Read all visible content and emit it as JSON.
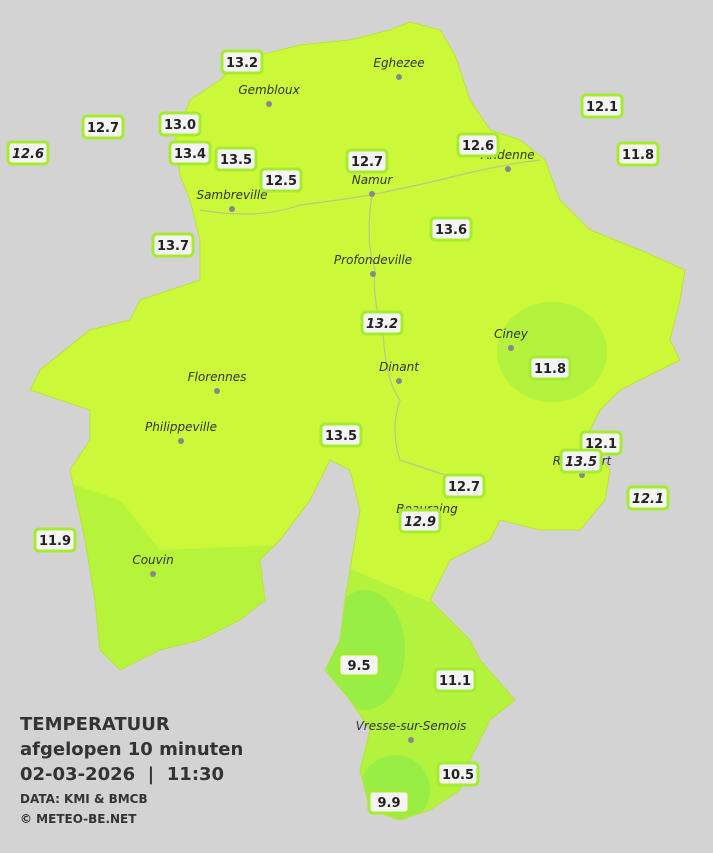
{
  "legend": {
    "title": "TEMPERATUUR",
    "subtitle": "afgelopen 10 minuten",
    "datetime": "02-03-2026  |  11:30",
    "source": "DATA: KMI & BMCB",
    "copyright": "© METEO-BE.NET"
  },
  "places": [
    "Eghezee",
    "Gembloux",
    "Andenne",
    "Namur",
    "Sambreville",
    "Profondeville",
    "Ciney",
    "Florennes",
    "Dinant",
    "Philippeville",
    "Rochefort",
    "Beauraing",
    "Couvin",
    "Vresse-sur-Semois"
  ],
  "stations": [
    {
      "value": "13.2",
      "italic": false
    },
    {
      "value": "12.7",
      "italic": false
    },
    {
      "value": "13.0",
      "italic": false
    },
    {
      "value": "12.6",
      "italic": true
    },
    {
      "value": "13.4",
      "italic": false
    },
    {
      "value": "13.5",
      "italic": false
    },
    {
      "value": "12.5",
      "italic": false
    },
    {
      "value": "12.7",
      "italic": false
    },
    {
      "value": "12.6",
      "italic": false
    },
    {
      "value": "12.1",
      "italic": false
    },
    {
      "value": "11.8",
      "italic": false
    },
    {
      "value": "13.7",
      "italic": false
    },
    {
      "value": "13.6",
      "italic": false
    },
    {
      "value": "13.2",
      "italic": true
    },
    {
      "value": "11.8",
      "italic": false
    },
    {
      "value": "13.5",
      "italic": false
    },
    {
      "value": "12.1",
      "italic": false
    },
    {
      "value": "13.5",
      "italic": true
    },
    {
      "value": "12.1",
      "italic": true
    },
    {
      "value": "12.7",
      "italic": false
    },
    {
      "value": "12.9",
      "italic": true
    },
    {
      "value": "11.9",
      "italic": false
    },
    {
      "value": "9.5",
      "italic": false
    },
    {
      "value": "11.1",
      "italic": false
    },
    {
      "value": "10.5",
      "italic": false
    },
    {
      "value": "9.9",
      "italic": false
    }
  ]
}
